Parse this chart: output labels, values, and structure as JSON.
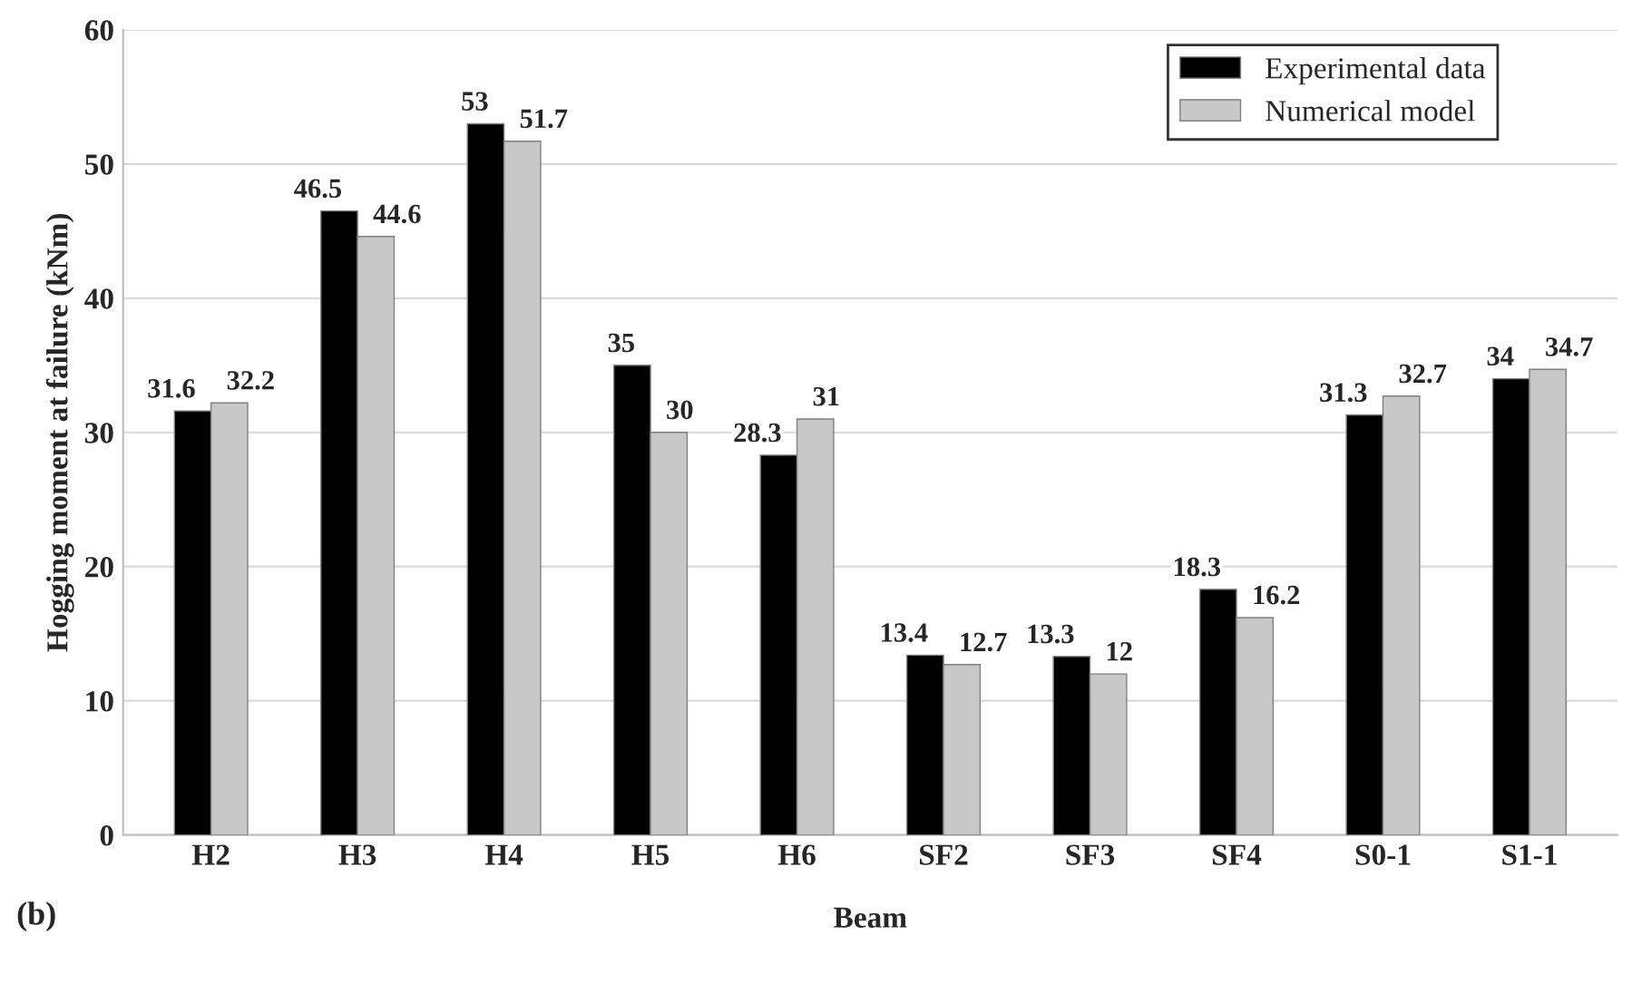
{
  "chart_data": {
    "type": "bar",
    "xlabel": "Beam",
    "ylabel": "Hogging moment at failure (kNm)",
    "categories": [
      "H2",
      "H3",
      "H4",
      "H5",
      "H6",
      "SF2",
      "SF3",
      "SF4",
      "S0-1",
      "S1-1"
    ],
    "series": [
      {
        "name": "Experimental data",
        "color": "#000000",
        "values": [
          31.6,
          46.5,
          53,
          35,
          28.3,
          13.4,
          13.3,
          18.3,
          31.3,
          34
        ]
      },
      {
        "name": "Numerical model",
        "color": "#c8c8c8",
        "values": [
          32.2,
          44.6,
          51.7,
          30,
          31,
          12.7,
          12,
          16.2,
          32.7,
          34.7
        ]
      }
    ],
    "ylim": [
      0,
      60
    ],
    "yticks": [
      0,
      10,
      20,
      30,
      40,
      50,
      60
    ],
    "grid": "y",
    "legend": "top right",
    "data_labels": true,
    "annotations": [
      "(b)"
    ]
  }
}
